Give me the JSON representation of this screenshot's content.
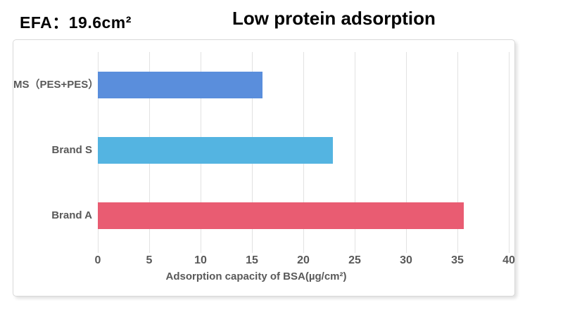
{
  "header": {
    "efa_text": "EFA：19.6cm²",
    "title": "Low protein adsorption"
  },
  "chart_data": {
    "type": "bar",
    "orientation": "horizontal",
    "title": "Low protein adsorption",
    "categories": [
      "MS（PES+PES）",
      "Brand S",
      "Brand A"
    ],
    "values": [
      16,
      22.9,
      35.6
    ],
    "bar_colors": [
      "#5a8edc",
      "#54b4e1",
      "#e95c72"
    ],
    "xlabel": "Adsorption capacity of BSA(µg/cm²)",
    "ylabel": "",
    "xticks": [
      0,
      5,
      10,
      15,
      20,
      25,
      30,
      35,
      40
    ],
    "xlim": [
      0,
      40
    ],
    "grid": true,
    "legend": false,
    "colors": {
      "gridline": "#e2e2e2",
      "tick_label": "#595959",
      "category_label": "#595959",
      "axis_title": "#595959",
      "panel_border": "#d9d9d9"
    }
  }
}
